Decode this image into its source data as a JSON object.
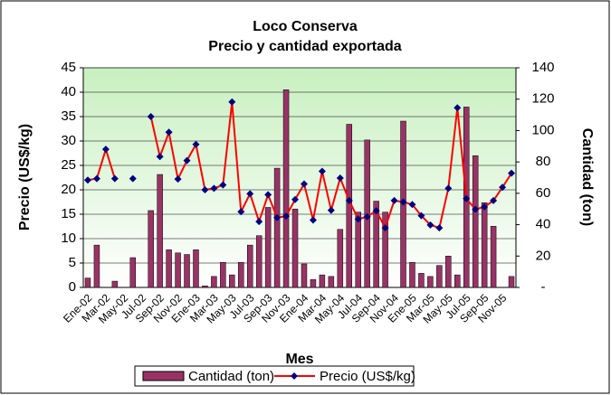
{
  "chart_data": {
    "type": "bar_line",
    "title": "Loco Conserva",
    "subtitle": "Precio y cantidad exportada",
    "x_label": "Mes",
    "y_label": "Precio (US$/kg)",
    "y2_label": "Cantidad (ton)",
    "categories": [
      "Ene-02",
      null,
      "Mar-02",
      null,
      "May-02",
      null,
      "Jul-02",
      null,
      "Sep-02",
      null,
      "Nov-02",
      null,
      "Ene-03",
      null,
      "Mar-03",
      null,
      "May-03",
      null,
      "Jul-03",
      null,
      "Sep-03",
      null,
      "Nov-03",
      null,
      "Ene-04",
      null,
      "Mar-04",
      null,
      "May-04",
      null,
      "Jul-04",
      null,
      "Sep-04",
      null,
      "Nov-04",
      null,
      "Ene-05",
      null,
      "Mar-05",
      null,
      "May-05",
      null,
      "Jul-05",
      null,
      "Sep-05",
      null,
      "Nov-05",
      null
    ],
    "series": [
      {
        "name": "Cantidad (ton)",
        "kind": "bar",
        "axis": "y2",
        "color": "#993366",
        "values": [
          6,
          27,
          0,
          4,
          0,
          19,
          0,
          49,
          72,
          24,
          22,
          21,
          24,
          1,
          7,
          16,
          8,
          16,
          27,
          33,
          51,
          76,
          126,
          50,
          15,
          5,
          8,
          7,
          37,
          104,
          48,
          94,
          55,
          48,
          0,
          106,
          16,
          9,
          7,
          14,
          20,
          8,
          115,
          84,
          54,
          39,
          0,
          7
        ]
      },
      {
        "name": "Precio (US$/kg)",
        "kind": "line",
        "axis": "y",
        "color": "#ff0000",
        "marker_color": "#000080",
        "values": [
          22,
          22.3,
          28.3,
          22.3,
          null,
          22.3,
          null,
          35,
          26.8,
          31.8,
          22.2,
          26,
          29.3,
          20,
          20.3,
          21,
          38,
          15.5,
          19.2,
          13.5,
          19,
          14.3,
          14.6,
          18,
          21.2,
          13.8,
          23.8,
          15.8,
          22.4,
          17.8,
          14,
          14.5,
          15.7,
          12.2,
          17.8,
          17.5,
          17,
          14.7,
          12.8,
          12.2,
          20.3,
          36.8,
          18.2,
          16,
          16.5,
          17.8,
          20.5,
          23.4
        ]
      }
    ],
    "ylim": [
      0,
      45
    ],
    "yticks": [
      0,
      5,
      10,
      15,
      20,
      25,
      30,
      35,
      40,
      45
    ],
    "y2lim": [
      0,
      140
    ],
    "y2ticks": [
      {
        "value": 0,
        "label": "-"
      },
      20,
      40,
      60,
      80,
      100,
      120,
      140
    ],
    "grid": true,
    "legend": "bottom"
  }
}
